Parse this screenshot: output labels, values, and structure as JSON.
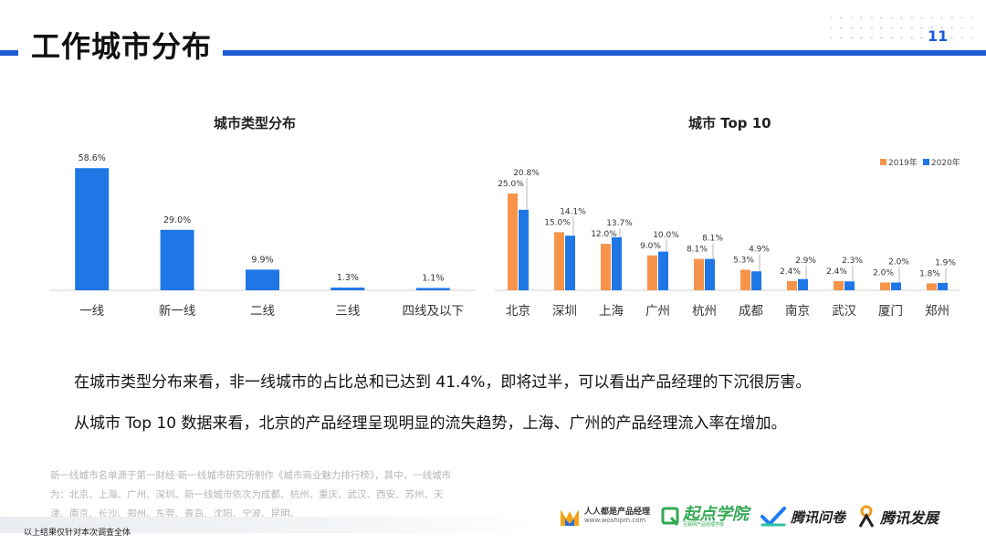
{
  "header": {
    "title": "工作城市分布",
    "page_number": "11"
  },
  "chart_data": [
    {
      "type": "bar",
      "title": "城市类型分布",
      "categories": [
        "一线",
        "新一线",
        "二线",
        "三线",
        "四线及以下"
      ],
      "values": [
        58.6,
        29.0,
        9.9,
        1.3,
        1.1
      ],
      "value_labels": [
        "58.6%",
        "29.0%",
        "9.9%",
        "1.3%",
        "1.1%"
      ],
      "unit": "%",
      "ylim": [
        0,
        60
      ],
      "grid": false,
      "color": "#1f77e6"
    },
    {
      "type": "bar",
      "title": "城市 Top 10",
      "categories": [
        "北京",
        "深圳",
        "上海",
        "广州",
        "杭州",
        "成都",
        "南京",
        "武汉",
        "厦门",
        "郑州"
      ],
      "series": [
        {
          "name": "2019年",
          "color": "#f7944a",
          "values": [
            25.0,
            15.0,
            12.0,
            9.0,
            8.1,
            5.3,
            2.4,
            2.4,
            2.0,
            1.8
          ],
          "value_labels": [
            "25.0%",
            "15.0%",
            "12.0%",
            "9.0%",
            "8.1%",
            "5.3%",
            "2.4%",
            "2.4%",
            "2.0%",
            "1.8%"
          ]
        },
        {
          "name": "2020年",
          "color": "#1f77e6",
          "values": [
            20.8,
            14.1,
            13.7,
            10.0,
            8.1,
            4.9,
            2.9,
            2.3,
            2.0,
            1.9
          ],
          "value_labels": [
            "20.8%",
            "14.1%",
            "13.7%",
            "10.0%",
            "8.1%",
            "4.9%",
            "2.9%",
            "2.3%",
            "2.0%",
            "1.9%"
          ]
        }
      ],
      "unit": "%",
      "ylim": [
        0,
        25
      ],
      "legend": "top-right",
      "grid": false
    }
  ],
  "description": {
    "line1": "在城市类型分布来看，非一线城市的占比总和已达到 41.4%，即将过半，可以看出产品经理的下沉很厉害。",
    "line2": "从城市 Top 10 数据来看，北京的产品经理呈现明显的流失趋势，上海、广州的产品经理流入率在增加。"
  },
  "note": "新一线城市名单源于第一财经·新一线城市研究所制作《城市商业魅力排行榜》，其中，一线城市为：北京、上海、广州、深圳。新一线城市依次为成都、杭州、重庆、武汉、西安、苏州、天津、南京、长沙、郑州、东莞、青岛、沈阳、宁波、昆明。",
  "footnote": "以上结果仅针对本次调查全体",
  "logos": {
    "logo1_main": "人人都是产品经理",
    "logo1_sub": "www.woshipm.com",
    "logo2_main": "起点学院",
    "logo2_sub": "互联网产品经理学院",
    "logo3_main": "腾讯问卷",
    "logo4_main": "腾讯发展"
  }
}
